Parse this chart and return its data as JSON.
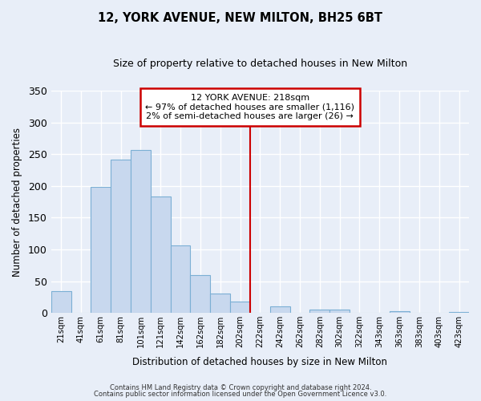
{
  "title": "12, YORK AVENUE, NEW MILTON, BH25 6BT",
  "subtitle": "Size of property relative to detached houses in New Milton",
  "xlabel": "Distribution of detached houses by size in New Milton",
  "ylabel": "Number of detached properties",
  "bar_labels": [
    "21sqm",
    "41sqm",
    "61sqm",
    "81sqm",
    "101sqm",
    "121sqm",
    "142sqm",
    "162sqm",
    "182sqm",
    "202sqm",
    "222sqm",
    "242sqm",
    "262sqm",
    "282sqm",
    "302sqm",
    "322sqm",
    "343sqm",
    "363sqm",
    "383sqm",
    "403sqm",
    "423sqm"
  ],
  "bar_values": [
    35,
    0,
    198,
    242,
    257,
    184,
    106,
    60,
    30,
    18,
    0,
    10,
    0,
    5,
    5,
    0,
    0,
    3,
    0,
    0,
    1
  ],
  "bar_color": "#c8d8ee",
  "bar_edge_color": "#7bafd4",
  "vline_x_label": "222sqm",
  "vline_color": "#cc0000",
  "annotation_title": "12 YORK AVENUE: 218sqm",
  "annotation_line1": "← 97% of detached houses are smaller (1,116)",
  "annotation_line2": "2% of semi-detached houses are larger (26) →",
  "annotation_box_color": "#ffffff",
  "annotation_box_edge": "#cc0000",
  "ylim": [
    0,
    350
  ],
  "yticks": [
    0,
    50,
    100,
    150,
    200,
    250,
    300,
    350
  ],
  "bg_color": "#e8eef8",
  "grid_color": "#ffffff",
  "footnote1": "Contains HM Land Registry data © Crown copyright and database right 2024.",
  "footnote2": "Contains public sector information licensed under the Open Government Licence v3.0."
}
